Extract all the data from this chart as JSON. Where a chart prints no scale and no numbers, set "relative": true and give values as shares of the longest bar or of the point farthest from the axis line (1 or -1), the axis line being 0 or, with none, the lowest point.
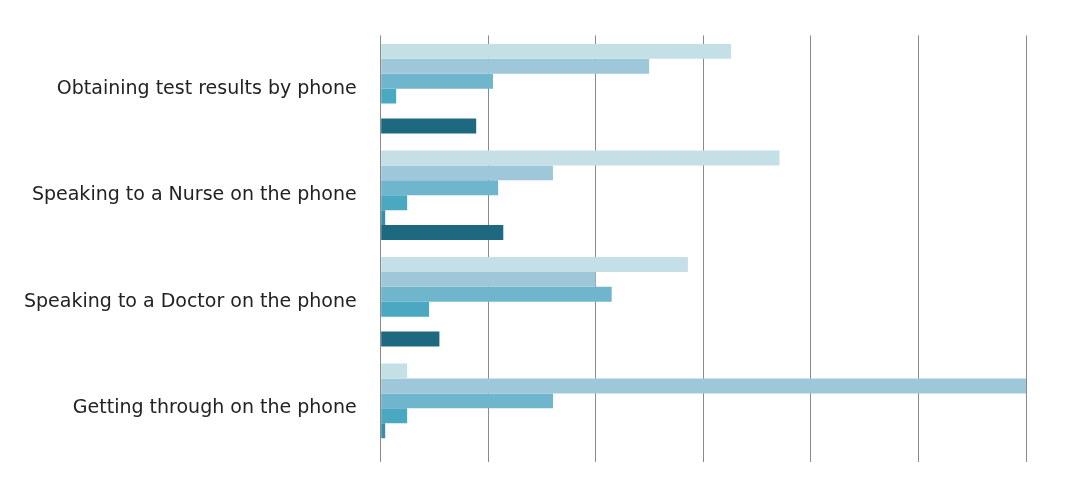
{
  "chart_data": {
    "type": "bar",
    "orientation": "horizontal",
    "relative": true,
    "grid": "x",
    "legend": false,
    "tick_labels": "y",
    "categories": [
      "Obtaining test results by phone",
      "Speaking to a Nurse on the phone",
      "Speaking to a Doctor on the phone",
      "Getting through on the phone"
    ],
    "series": [
      {
        "color": "#c5dfe6",
        "values": [
          0.543,
          0.618,
          0.476,
          0.041
        ]
      },
      {
        "color": "#9ec8da",
        "values": [
          0.416,
          0.267,
          0.333,
          1
        ]
      },
      {
        "color": "#6fb5cc",
        "values": [
          0.174,
          0.182,
          0.358,
          0.267
        ]
      },
      {
        "color": "#4aa8c0",
        "values": [
          0.024,
          0.041,
          0.075,
          0.041
        ]
      },
      {
        "color": "#3a8fa8",
        "values": [
          null,
          0.007,
          null,
          0.007
        ]
      },
      {
        "color": "#1d6a80",
        "values": [
          0.148,
          0.19,
          0.091,
          null
        ]
      }
    ]
  }
}
